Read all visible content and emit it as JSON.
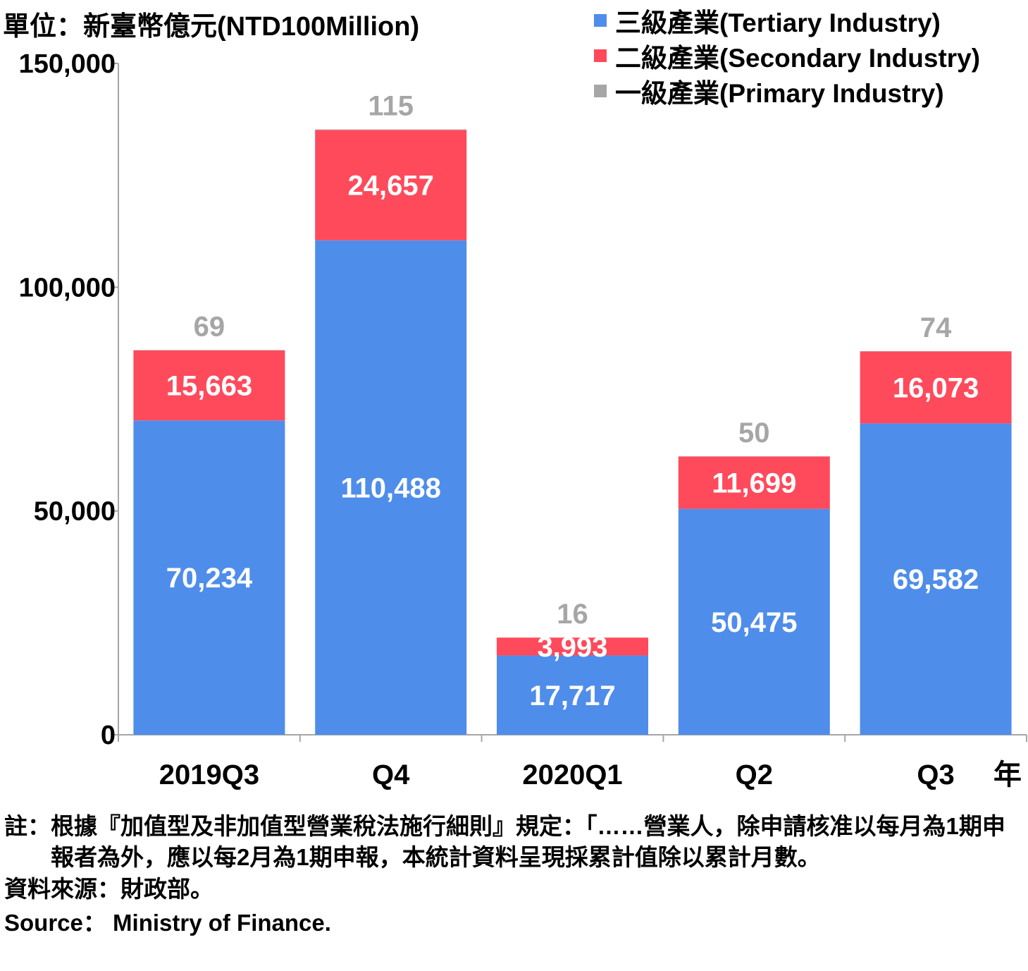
{
  "header": {
    "unit": "單位：新臺幣億元(NTD100Million)"
  },
  "chart_data": {
    "type": "bar",
    "stacked": true,
    "categories": [
      "2019Q3",
      "Q4",
      "2020Q1",
      "Q2",
      "Q3"
    ],
    "x_unit_label": "年",
    "series": [
      {
        "name": "三級產業(Tertiary Industry)",
        "color": "#4F8DEB",
        "values": [
          70234,
          110488,
          17717,
          50475,
          69582
        ],
        "labels": [
          "70,234",
          "110,488",
          "17,717",
          "50,475",
          "69,582"
        ]
      },
      {
        "name": "二級產業(Secondary Industry)",
        "color": "#FF4A5C",
        "values": [
          15663,
          24657,
          3993,
          11699,
          16073
        ],
        "labels": [
          "15,663",
          "24,657",
          "3,993",
          "11,699",
          "16,073"
        ]
      },
      {
        "name": "一級產業(Primary Industry)",
        "color": "#A6A6A6",
        "values": [
          69,
          115,
          16,
          50,
          74
        ],
        "labels": [
          "69",
          "115",
          "16",
          "50",
          "74"
        ]
      }
    ],
    "ylim": [
      0,
      150000
    ],
    "yticks": [
      0,
      50000,
      100000,
      150000
    ],
    "ytick_labels": [
      "0",
      "50,000",
      "100,000",
      "150,000"
    ],
    "legend_position": "top-right",
    "grid": false
  },
  "notes": {
    "note_prefix": "註：",
    "note_text": "根據『加值型及非加值型營業稅法施行細則』規定：「……營業人，除申請核准以每月為1期申報者為外，應以每2月為1期申報，本統計資料呈現採累計值除以累計月數。",
    "source_zh": "資料來源：財政部。",
    "source_en": "Source： Ministry of Finance."
  }
}
